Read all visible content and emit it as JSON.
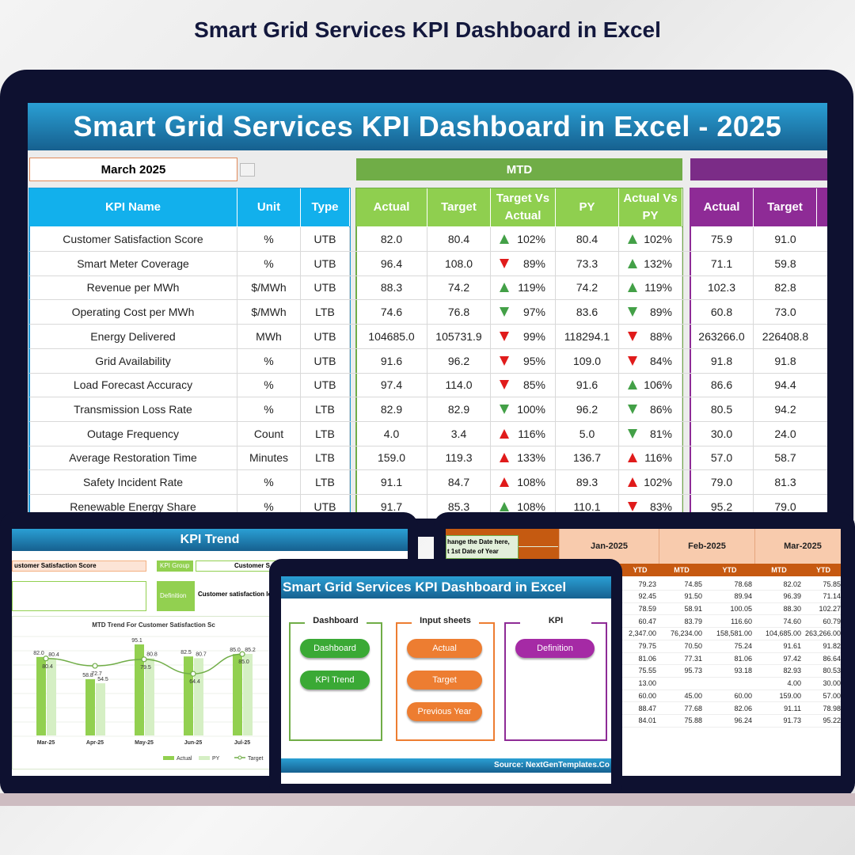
{
  "header": {
    "title": "Smart Grid Services KPI Dashboard in Excel"
  },
  "dashboard": {
    "banner": "Smart Grid Services KPI Dashboard in Excel - 2025",
    "month": "March 2025",
    "mtd_label": "MTD",
    "kpi_columns": [
      "KPI Name",
      "Unit",
      "Type"
    ],
    "mtd_columns": [
      "Actual",
      "Target",
      "Target Vs Actual",
      "PY",
      "Actual Vs PY"
    ],
    "ytd_columns": [
      "Actual",
      "Target"
    ],
    "rows": [
      [
        "Customer Satisfaction Score",
        "%",
        "UTB",
        "82.0",
        "80.4",
        "102%",
        "80.4",
        "102%",
        "75.9",
        "91.0"
      ],
      [
        "Smart Meter Coverage",
        "%",
        "UTB",
        "96.4",
        "108.0",
        "89%",
        "73.3",
        "132%",
        "71.1",
        "59.8"
      ],
      [
        "Revenue per MWh",
        "$/MWh",
        "UTB",
        "88.3",
        "74.2",
        "119%",
        "74.2",
        "119%",
        "102.3",
        "82.8"
      ],
      [
        "Operating Cost per MWh",
        "$/MWh",
        "LTB",
        "74.6",
        "76.8",
        "97%",
        "83.6",
        "89%",
        "60.8",
        "73.0"
      ],
      [
        "Energy Delivered",
        "MWh",
        "UTB",
        "104685.0",
        "105731.9",
        "99%",
        "118294.1",
        "88%",
        "263266.0",
        "226408.8"
      ],
      [
        "Grid Availability",
        "%",
        "UTB",
        "91.6",
        "96.2",
        "95%",
        "109.0",
        "84%",
        "91.8",
        "91.8"
      ],
      [
        "Load Forecast Accuracy",
        "%",
        "UTB",
        "97.4",
        "114.0",
        "85%",
        "91.6",
        "106%",
        "86.6",
        "94.4"
      ],
      [
        "Transmission Loss Rate",
        "%",
        "LTB",
        "82.9",
        "82.9",
        "100%",
        "96.2",
        "86%",
        "80.5",
        "94.2"
      ],
      [
        "Outage Frequency",
        "Count",
        "LTB",
        "4.0",
        "3.4",
        "116%",
        "5.0",
        "81%",
        "30.0",
        "24.0"
      ],
      [
        "Average Restoration Time",
        "Minutes",
        "LTB",
        "159.0",
        "119.3",
        "133%",
        "136.7",
        "116%",
        "57.0",
        "58.7"
      ],
      [
        "Safety Incident Rate",
        "%",
        "LTB",
        "91.1",
        "84.7",
        "108%",
        "89.3",
        "102%",
        "79.0",
        "81.3"
      ],
      [
        "Renewable Energy Share",
        "%",
        "UTB",
        "91.7",
        "85.3",
        "108%",
        "110.1",
        "83%",
        "95.2",
        "79.0"
      ]
    ]
  },
  "trend_sheet": {
    "title": "KPI Trend",
    "kpi_name": "ustomer Satisfaction Score",
    "group_label": "KPI Group",
    "group_value": "Customer S",
    "definition_label": "Definition",
    "definition_value": "Customer satisfaction lev",
    "chart": {
      "type": "bar",
      "title": "MTD Trend For Customer Satisfaction Sc",
      "categories": [
        "Mar-25",
        "Apr-25",
        "May-25",
        "Jun-25",
        "Jul-25"
      ],
      "series": [
        {
          "name": "Actual",
          "color": "#92d050",
          "values": [
            82,
            58.8,
            95.1,
            82.5,
            85
          ],
          "value_labels": [
            "82.0",
            "58.8",
            "95.1",
            "82.5",
            "85.0"
          ]
        },
        {
          "name": "PY",
          "color": "#d5efc4",
          "values": [
            80.4,
            54.5,
            80.8,
            80.7,
            85.2
          ]
        },
        {
          "name": "Target",
          "color": "#70ad47",
          "values": [
            80.4,
            72.7,
            79.5,
            64.4,
            85
          ],
          "value_labels": [
            "80.4",
            "72.7",
            "79.5",
            "64.4",
            "85.0"
          ]
        }
      ]
    }
  },
  "input_sheet": {
    "callout": [
      "hange the Date here,",
      "t 1st Date of Year"
    ],
    "months": [
      "Jan-2025",
      "Feb-2025",
      "Mar-2025"
    ],
    "subheaders": [
      "YTD",
      "MTD",
      "YTD",
      "MTD",
      "YTD"
    ],
    "rows": [
      [
        "79.23",
        "74.85",
        "78.68",
        "82.02",
        "75.85"
      ],
      [
        "92.45",
        "91.50",
        "89.94",
        "96.39",
        "71.14"
      ],
      [
        "78.59",
        "58.91",
        "100.05",
        "88.30",
        "102.27"
      ],
      [
        "60.47",
        "83.79",
        "116.60",
        "74.60",
        "60.79"
      ],
      [
        "2,347.00",
        "76,234.00",
        "158,581.00",
        "104,685.00",
        "263,266.00"
      ],
      [
        "79.75",
        "70.50",
        "75.24",
        "91.61",
        "91.82"
      ],
      [
        "81.06",
        "77.31",
        "81.06",
        "97.42",
        "86.64"
      ],
      [
        "75.55",
        "95.73",
        "93.18",
        "82.93",
        "80.53"
      ],
      [
        "13.00",
        null,
        null,
        "4.00",
        "30.00"
      ],
      [
        "60.00",
        "45.00",
        "60.00",
        "159.00",
        "57.00"
      ],
      [
        "88.47",
        "77.68",
        "82.06",
        "91.11",
        "78.98"
      ],
      [
        "84.01",
        "75.88",
        "96.24",
        "91.73",
        "95.22"
      ]
    ]
  },
  "home": {
    "title": "Smart Grid Services KPI Dashboard in Excel",
    "groups": [
      {
        "title": "Dashboard",
        "buttons": [
          "Dashboard",
          "KPI Trend"
        ]
      },
      {
        "title": "Input sheets",
        "buttons": [
          "Actual",
          "Target",
          "Previous Year"
        ]
      },
      {
        "title": "KPI",
        "buttons": [
          "Definition"
        ]
      }
    ],
    "source": "Source: NextGenTemplates.Co"
  }
}
